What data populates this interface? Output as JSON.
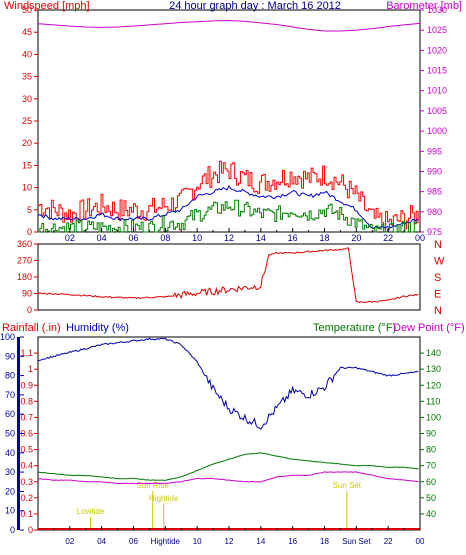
{
  "title": "24 hour graph day : March 16 2012",
  "colors": {
    "wind": "#dd0000",
    "wind_gust": "#ff0000",
    "wind_avg": "#0000cc",
    "wind_low": "#008000",
    "barometer": "#cc00cc",
    "direction": "#dd0000",
    "humidity": "#0000aa",
    "temperature": "#007700",
    "dewpoint": "#cc00cc",
    "rain": "#dd0000",
    "tide": "#cccc00",
    "axis_left": "#dd0000",
    "axis_baro": "#cc00cc",
    "axis_hum": "#0000aa",
    "axis_temp": "#007700",
    "day_label": "#000088"
  },
  "chart_data": [
    {
      "type": "line",
      "panel": "wind-barometer",
      "ylabel_left": "Windspeed [mph]",
      "ylabel_right": "Barometer [mb]",
      "ylim_left": [
        0,
        50
      ],
      "ylim_right": [
        975,
        1030
      ],
      "yticks_left": [
        "0",
        "5",
        "10",
        "15",
        "20",
        "25",
        "30",
        "35",
        "40",
        "45",
        "50"
      ],
      "yticks_right": [
        "975",
        "980",
        "985",
        "990",
        "995",
        "1000",
        "1005",
        "1010",
        "1015",
        "1020",
        "1025",
        "1030"
      ],
      "xticks": [
        "02",
        "04",
        "06",
        "08",
        "10",
        "12",
        "14",
        "16",
        "18",
        "20",
        "22",
        "00"
      ],
      "x_hours": [
        0,
        1,
        2,
        3,
        4,
        5,
        6,
        7,
        8,
        9,
        10,
        11,
        12,
        13,
        14,
        15,
        16,
        17,
        18,
        19,
        20,
        21,
        22,
        23,
        24
      ],
      "series": [
        {
          "key": "gust",
          "values": [
            6,
            5,
            4,
            5,
            6,
            5,
            5,
            5,
            6,
            7,
            11,
            13,
            14,
            12,
            11,
            12,
            13,
            12,
            13,
            11,
            8,
            3,
            2,
            3,
            4
          ]
        },
        {
          "key": "avg",
          "values": [
            4,
            3,
            3,
            3,
            4,
            3,
            3,
            3,
            4,
            5,
            8,
            9,
            10,
            9,
            8,
            8,
            9,
            8,
            9,
            7,
            5,
            1,
            1,
            2,
            3
          ]
        },
        {
          "key": "low",
          "values": [
            1,
            1,
            1,
            1,
            1,
            1,
            1,
            1,
            2,
            2,
            4,
            5,
            6,
            5,
            4,
            4,
            5,
            4,
            5,
            4,
            2,
            0,
            0,
            1,
            1
          ]
        },
        {
          "key": "baro",
          "values": [
            1026.6,
            1026.3,
            1026.0,
            1025.8,
            1025.7,
            1025.8,
            1026.0,
            1026.3,
            1026.6,
            1026.9,
            1027.1,
            1027.3,
            1027.4,
            1027.2,
            1026.8,
            1026.4,
            1025.8,
            1025.2,
            1024.8,
            1024.8,
            1025.0,
            1025.4,
            1025.9,
            1026.3,
            1026.7
          ]
        }
      ]
    },
    {
      "type": "line",
      "panel": "wind-direction",
      "ylim_left": [
        0,
        360
      ],
      "yticks_left": [
        "0",
        "90",
        "180",
        "270",
        "360"
      ],
      "compass": [
        "N",
        "W",
        "S",
        "E",
        "N"
      ],
      "x_hours": [
        0,
        2,
        4,
        6,
        8,
        10,
        12,
        13,
        14,
        14.5,
        15,
        16,
        17,
        18,
        19,
        19.5,
        20,
        21,
        22,
        23,
        24
      ],
      "values": [
        92,
        85,
        72,
        65,
        72,
        92,
        112,
        122,
        132,
        300,
        310,
        312,
        318,
        325,
        330,
        335,
        42,
        45,
        52,
        75,
        85
      ]
    },
    {
      "type": "line",
      "panel": "rain-humidity-temp",
      "ylabel_rain": "Rainfall (.in)",
      "ylabel_humidity": "Humidity (%)",
      "ylabel_temp": "Temperature (°F)",
      "ylabel_dew": "Dew Point (°F)",
      "ylim_rain": [
        0,
        1.2
      ],
      "ylim_humidity": [
        0,
        100
      ],
      "ylim_temp": [
        30,
        150
      ],
      "yticks_rain": [
        "0",
        "0.1",
        "0.2",
        "0.3",
        "0.4",
        "0.5",
        "0.6",
        "0.7",
        "0.8",
        "0.9",
        "1",
        "1.1"
      ],
      "yticks_humidity": [
        "0",
        "10",
        "20",
        "30",
        "40",
        "50",
        "60",
        "70",
        "80",
        "90",
        "100"
      ],
      "yticks_temp": [
        "40",
        "50",
        "60",
        "70",
        "80",
        "90",
        "100",
        "110",
        "120",
        "130",
        "140"
      ],
      "xticks": [
        "02",
        "04",
        "06",
        "Hightide",
        "10",
        "12",
        "14",
        "16",
        "18",
        "Sun Set",
        "22",
        "00"
      ],
      "x_hours": [
        0,
        1,
        2,
        3,
        4,
        5,
        6,
        7,
        8,
        9,
        10,
        11,
        12,
        13,
        14,
        15,
        16,
        17,
        18,
        19,
        20,
        21,
        22,
        23,
        24
      ],
      "series": [
        {
          "key": "humidity",
          "values": [
            88,
            90,
            92,
            94,
            96,
            97,
            98,
            99,
            99,
            96,
            87,
            73,
            63,
            58,
            54,
            63,
            72,
            70,
            74,
            84,
            84,
            82,
            80,
            81,
            82
          ]
        },
        {
          "key": "temperature",
          "values": [
            66,
            65,
            64,
            64,
            63,
            62,
            62,
            61,
            61,
            63,
            67,
            71,
            74,
            77,
            78,
            76,
            74,
            73,
            72,
            71,
            70,
            70,
            69,
            69,
            68
          ]
        },
        {
          "key": "dewpoint",
          "values": [
            62,
            61,
            61,
            60,
            60,
            59,
            59,
            59,
            59,
            60,
            62,
            62,
            61,
            60,
            60,
            63,
            64,
            64,
            66,
            66,
            66,
            64,
            62,
            61,
            60
          ]
        },
        {
          "key": "rain",
          "values": [
            0,
            0,
            0,
            0,
            0,
            0,
            0,
            0,
            0,
            0,
            0,
            0,
            0,
            0,
            0,
            0,
            0,
            0,
            0,
            0,
            0,
            0,
            0,
            0,
            0
          ]
        }
      ],
      "annotations": [
        {
          "text": "Lowtide",
          "x_hour": 3.3,
          "label_y": 0.1
        },
        {
          "text": "Sun Rise",
          "x_hour": 7.2,
          "label_y": 0.26
        },
        {
          "text": "Hightide",
          "x_hour": 7.9,
          "label_y": 0.18
        },
        {
          "text": "Sun Set",
          "x_hour": 19.4,
          "label_y": 0.26
        }
      ]
    }
  ]
}
